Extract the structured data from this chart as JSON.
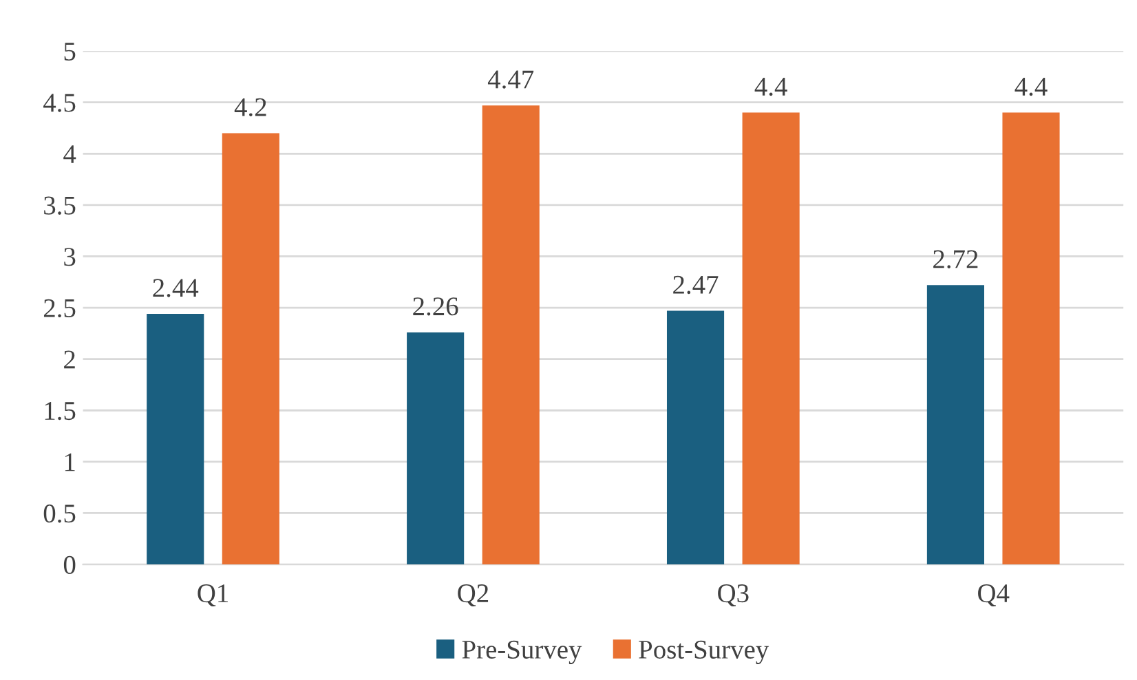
{
  "chart_data": {
    "type": "bar",
    "categories": [
      "Q1",
      "Q2",
      "Q3",
      "Q4"
    ],
    "series": [
      {
        "name": "Pre-Survey",
        "color": "#1a5f80",
        "values": [
          2.44,
          2.26,
          2.47,
          2.72
        ]
      },
      {
        "name": "Post-Survey",
        "color": "#e97132",
        "values": [
          4.2,
          4.47,
          4.4,
          4.4
        ]
      }
    ],
    "ylim": [
      0,
      5
    ],
    "yticks": [
      0,
      0.5,
      1,
      1.5,
      2,
      2.5,
      3,
      3.5,
      4,
      4.5,
      5
    ],
    "grid": "y",
    "legend": "bottom",
    "data_labels": true
  }
}
